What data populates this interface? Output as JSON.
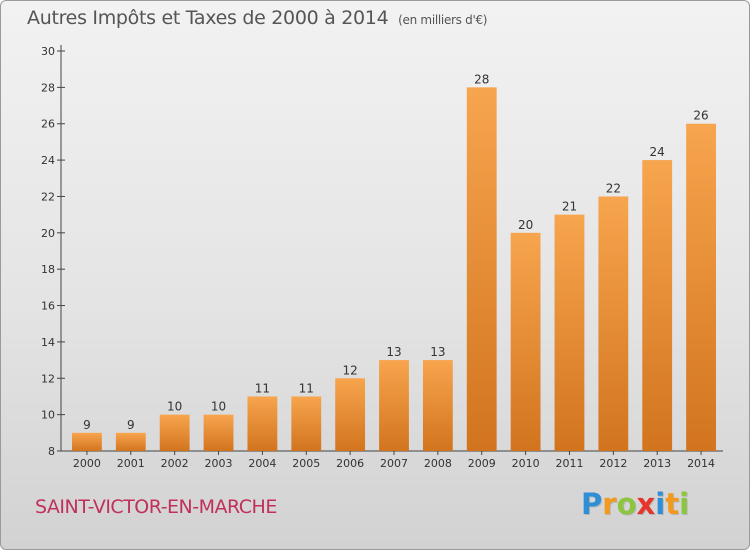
{
  "chart_data": {
    "type": "bar",
    "title": "Autres Impôts et Taxes de 2000 à 2014",
    "subtitle": "(en milliers d'€)",
    "xlabel": "",
    "ylabel": "",
    "categories": [
      "2000",
      "2001",
      "2002",
      "2003",
      "2004",
      "2005",
      "2006",
      "2007",
      "2008",
      "2009",
      "2010",
      "2011",
      "2012",
      "2013",
      "2014"
    ],
    "values": [
      9,
      9,
      10,
      10,
      11,
      11,
      12,
      13,
      13,
      28,
      20,
      21,
      22,
      24,
      26
    ],
    "ylim": [
      8,
      30
    ],
    "yticks": [
      8,
      10,
      12,
      14,
      16,
      18,
      20,
      22,
      24,
      26,
      28,
      30
    ],
    "grid": false,
    "legend": "none",
    "colors": {
      "bar_light": "#f7a54e",
      "bar_dark": "#d2741e",
      "axis": "#444444",
      "text": "#333333"
    }
  },
  "town_name": "SAINT-VICTOR-EN-MARCHE",
  "logo": {
    "letters": [
      "P",
      "r",
      "o",
      "x",
      "i",
      "t",
      "i"
    ],
    "colors": [
      "#2e8fd6",
      "#f19a1f",
      "#8cc63f",
      "#e8352c",
      "#2e8fd6",
      "#f19a1f",
      "#8cc63f"
    ]
  }
}
